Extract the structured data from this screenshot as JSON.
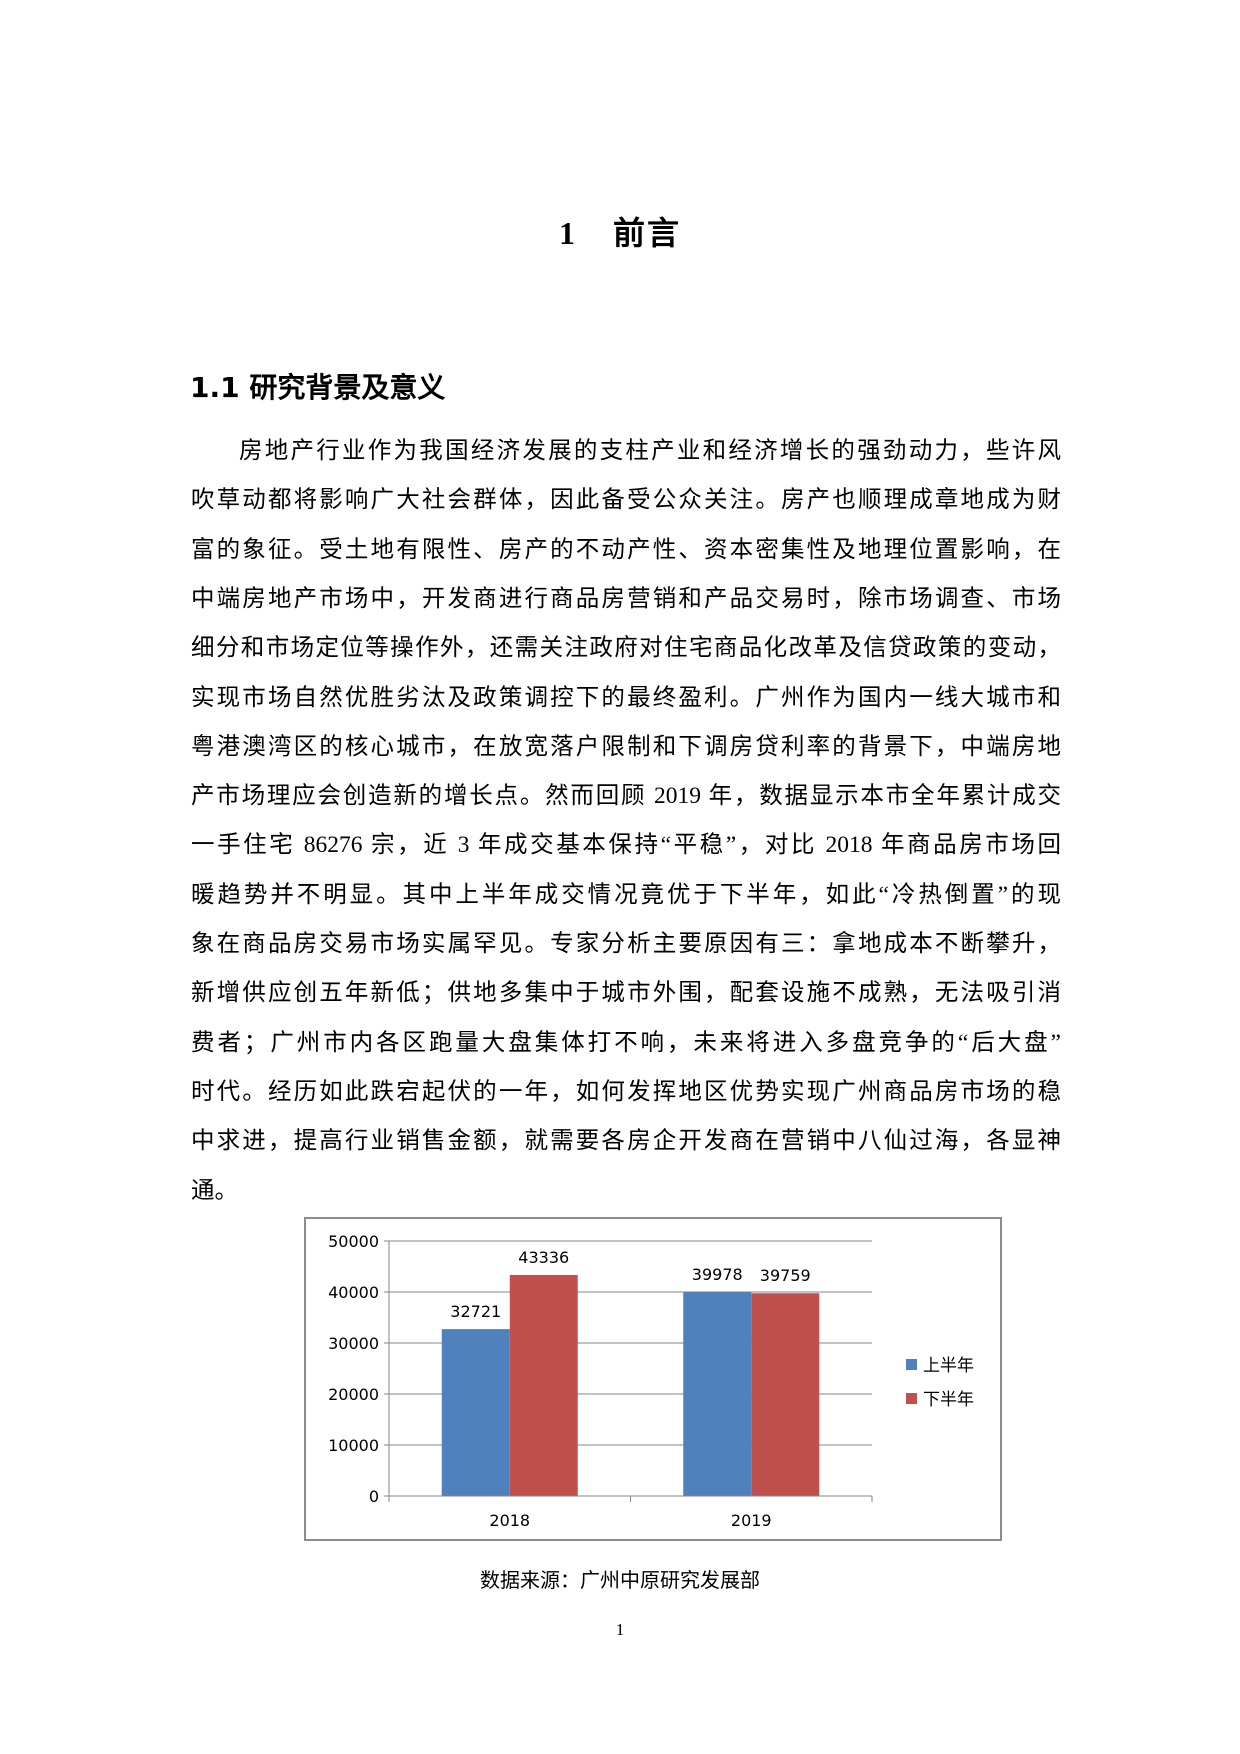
{
  "chapter": {
    "number": "1",
    "title": "前言"
  },
  "section": {
    "heading": "1.1 研究背景及意义"
  },
  "body_lines": [
    "房地产行业作为我国经济发展的支柱产业和经济增长的强劲动力，些许风",
    "吹草动都将影响广大社会群体，因此备受公众关注。房产也顺理成章地成为财",
    "富的象征。受土地有限性、房产的不动产性、资本密集性及地理位置影响，在",
    "中端房地产市场中，开发商进行商品房营销和产品交易时，除市场调查、市场",
    "细分和市场定位等操作外，还需关注政府对住宅商品化改革及信贷政策的变动，",
    "实现市场自然优胜劣汰及政策调控下的最终盈利。广州作为国内一线大城市和",
    "粤港澳湾区的核心城市，在放宽落户限制和下调房贷利率的背景下，中端房地",
    "产市场理应会创造新的增长点。然而回顾 2019 年，数据显示本市全年累计成交",
    "一手住宅 86276 宗，近 3 年成交基本保持“平稳”，对比 2018 年商品房市场回",
    "暖趋势并不明显。其中上半年成交情况竟优于下半年，如此“冷热倒置”的现",
    "象在商品房交易市场实属罕见。专家分析主要原因有三：拿地成本不断攀升，",
    "新增供应创五年新低；供地多集中于城市外围，配套设施不成熟，无法吸引消",
    "费者；广州市内各区跑量大盘集体打不响，未来将进入多盘竞争的“后大盘”",
    "时代。经历如此跌宕起伏的一年，如何发挥地区优势实现广州商品房市场的稳",
    "中求进，提高行业销售金额，就需要各房企开发商在营销中八仙过海，各显神",
    "通。"
  ],
  "chart_data": {
    "type": "bar",
    "categories": [
      "2018",
      "2019"
    ],
    "series": [
      {
        "name": "上半年",
        "values": [
          32721,
          39978
        ],
        "color": "#4f81bd"
      },
      {
        "name": "下半年",
        "values": [
          43336,
          39759
        ],
        "color": "#c0504d"
      }
    ],
    "ylim": [
      0,
      50000
    ],
    "yticks": [
      "0",
      "10000",
      "20000",
      "30000",
      "40000",
      "50000"
    ],
    "grid": true,
    "legend": "right",
    "data_labels": true
  },
  "caption": "数据来源：广州中原研究发展部",
  "page_number": "1"
}
